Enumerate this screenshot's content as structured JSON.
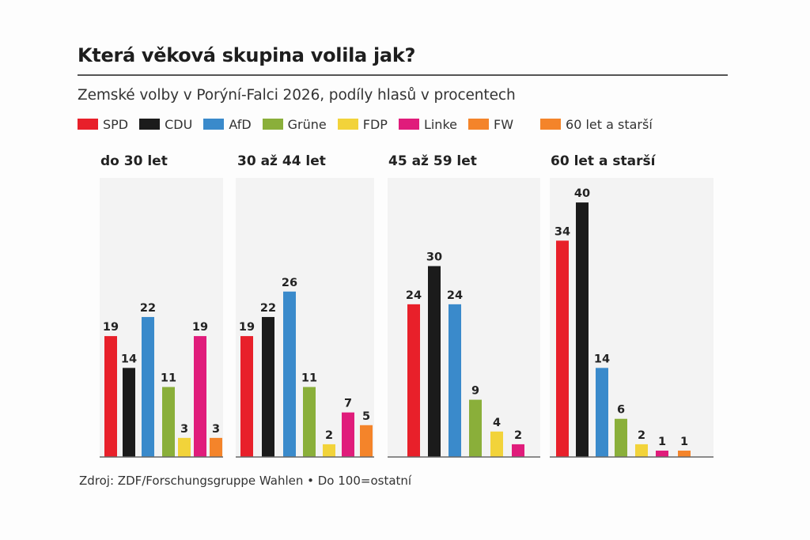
{
  "title": "Která věková skupina volila jak?",
  "subtitle": "Zemské volby v Porýní-Falci 2026, podíly hlasů v procentech",
  "source": "Zdroj: ZDF/Forschungsgruppe Wahlen • Do 100=ostatní",
  "legend": [
    {
      "label": "SPD",
      "color": "#e8202a"
    },
    {
      "label": "CDU",
      "color": "#1b1b1b"
    },
    {
      "label": "AfD",
      "color": "#3a8acb"
    },
    {
      "label": "Grüne",
      "color": "#8aaf3a"
    },
    {
      "label": "FDP",
      "color": "#f2d33a"
    },
    {
      "label": "Linke",
      "color": "#e01c7b"
    },
    {
      "label": "FW",
      "color": "#f4842a"
    },
    {
      "label": "60 let a starší",
      "color": "#f4842a"
    }
  ],
  "chart_data": {
    "type": "bar",
    "title": "Která věková skupina volila jak?",
    "subtitle": "Zemské volby v Porýní-Falci 2026, podíly hlasů v procentech",
    "xlabel": "",
    "ylabel": "",
    "ylim": [
      0,
      42
    ],
    "grid": false,
    "legend_position": "top",
    "categories": [
      "SPD",
      "CDU",
      "AfD",
      "Grüne",
      "FDP",
      "Linke",
      "FW"
    ],
    "colors": [
      "#e8202a",
      "#1b1b1b",
      "#3a8acb",
      "#8aaf3a",
      "#f2d33a",
      "#e01c7b",
      "#f4842a"
    ],
    "panels": [
      {
        "title": "do 30 let",
        "parties": [
          "SPD",
          "CDU",
          "AfD",
          "Grüne",
          "FDP",
          "Linke",
          "FW"
        ],
        "values": [
          19,
          14,
          22,
          11,
          3,
          19,
          3
        ]
      },
      {
        "title": "30 až 44 let",
        "parties": [
          "SPD",
          "CDU",
          "AfD",
          "Grüne",
          "FDP",
          "Linke",
          "FW"
        ],
        "values": [
          19,
          22,
          26,
          11,
          2,
          7,
          5
        ]
      },
      {
        "title": "45 až 59 let",
        "parties": [
          "SPD",
          "CDU",
          "AfD",
          "Grüne",
          "FDP",
          "Linke"
        ],
        "values": [
          24,
          30,
          24,
          9,
          4,
          2
        ]
      },
      {
        "title": "60 let a starší",
        "parties": [
          "SPD",
          "CDU",
          "AfD",
          "Grüne",
          "FDP",
          "Linke",
          "FW"
        ],
        "values": [
          34,
          40,
          14,
          6,
          2,
          1,
          1
        ]
      }
    ]
  }
}
